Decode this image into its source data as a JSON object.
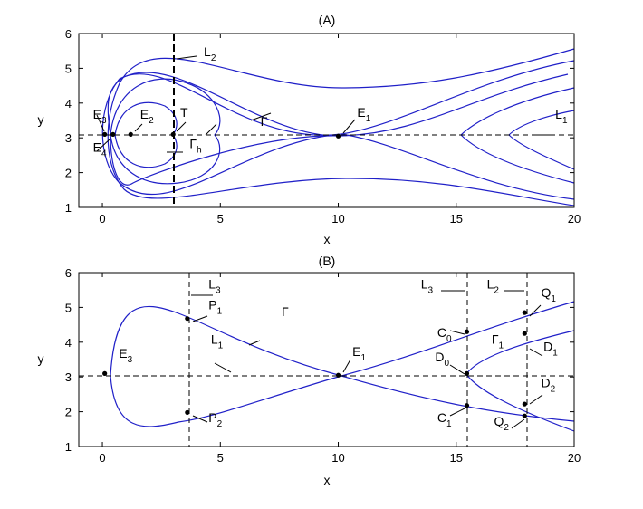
{
  "figure": {
    "panels": [
      {
        "title": "(A)",
        "xlabel": "x",
        "ylabel": "y",
        "xlim": [
          -1,
          20
        ],
        "ylim": [
          1,
          6
        ],
        "xticks": [
          0,
          5,
          10,
          15,
          20
        ],
        "yticks": [
          1,
          2,
          3,
          4,
          5,
          6
        ],
        "hline_y": 3.08,
        "vlines": [
          {
            "x": 3.0,
            "style": "bold"
          }
        ],
        "points": [
          {
            "x": 0.1,
            "y": 3.1
          },
          {
            "x": 0.45,
            "y": 3.1
          },
          {
            "x": 1.2,
            "y": 3.1
          },
          {
            "x": 3.0,
            "y": 3.1
          },
          {
            "x": 10.0,
            "y": 3.05
          }
        ],
        "labels": [
          {
            "main": "E",
            "sub": "3",
            "x": -0.4,
            "y": 3.55
          },
          {
            "main": "E",
            "sub": "4",
            "x": -0.4,
            "y": 2.6
          },
          {
            "main": "E",
            "sub": "2",
            "x": 1.6,
            "y": 3.55
          },
          {
            "main": "T",
            "sub": "",
            "x": 3.3,
            "y": 3.6
          },
          {
            "main": "Γ",
            "sub": "h",
            "x": 3.7,
            "y": 2.7
          },
          {
            "main": "Γ",
            "sub": "",
            "x": 6.7,
            "y": 3.35
          },
          {
            "main": "E",
            "sub": "1",
            "x": 10.8,
            "y": 3.6
          },
          {
            "main": "L",
            "sub": "2",
            "x": 4.3,
            "y": 5.35
          },
          {
            "main": "L",
            "sub": "1",
            "x": 19.2,
            "y": 3.55
          }
        ]
      },
      {
        "title": "(B)",
        "xlabel": "x",
        "ylabel": "y",
        "xlim": [
          -1,
          20
        ],
        "ylim": [
          1,
          6
        ],
        "xticks": [
          0,
          5,
          10,
          15,
          20
        ],
        "yticks": [
          1,
          2,
          3,
          4,
          5,
          6
        ],
        "hline_y": 3.08,
        "vlines": [
          {
            "x": 3.6,
            "style": "thin"
          },
          {
            "x": 15.45,
            "style": "thin"
          },
          {
            "x": 17.9,
            "style": "thin"
          }
        ],
        "points": [
          {
            "x": 0.1,
            "y": 3.1
          },
          {
            "x": 3.6,
            "y": 4.68
          },
          {
            "x": 3.6,
            "y": 1.98
          },
          {
            "x": 10.0,
            "y": 3.05
          },
          {
            "x": 15.45,
            "y": 4.3
          },
          {
            "x": 15.45,
            "y": 3.1
          },
          {
            "x": 15.45,
            "y": 2.18
          },
          {
            "x": 17.9,
            "y": 4.85
          },
          {
            "x": 17.9,
            "y": 4.25
          },
          {
            "x": 17.9,
            "y": 2.22
          },
          {
            "x": 17.9,
            "y": 1.88
          }
        ],
        "labels": [
          {
            "main": "E",
            "sub": "3",
            "x": 0.7,
            "y": 3.55
          },
          {
            "main": "L",
            "sub": "3",
            "x": 4.5,
            "y": 5.55
          },
          {
            "main": "P",
            "sub": "1",
            "x": 4.5,
            "y": 4.95
          },
          {
            "main": "L",
            "sub": "1",
            "x": 4.6,
            "y": 3.95
          },
          {
            "main": "Γ",
            "sub": "",
            "x": 7.6,
            "y": 4.75
          },
          {
            "main": "P",
            "sub": "2",
            "x": 4.5,
            "y": 1.7
          },
          {
            "main": "E",
            "sub": "1",
            "x": 10.6,
            "y": 3.6
          },
          {
            "main": "L",
            "sub": "3",
            "x": 13.5,
            "y": 5.55
          },
          {
            "main": "C",
            "sub": "0",
            "x": 14.2,
            "y": 4.15
          },
          {
            "main": "D",
            "sub": "0",
            "x": 14.1,
            "y": 3.45
          },
          {
            "main": "C",
            "sub": "1",
            "x": 14.2,
            "y": 1.7
          },
          {
            "main": "L",
            "sub": "2",
            "x": 16.3,
            "y": 5.55
          },
          {
            "main": "Q",
            "sub": "1",
            "x": 18.6,
            "y": 5.3
          },
          {
            "main": "Γ",
            "sub": "1",
            "x": 16.5,
            "y": 3.95
          },
          {
            "main": "D",
            "sub": "1",
            "x": 18.7,
            "y": 3.75
          },
          {
            "main": "D",
            "sub": "2",
            "x": 18.6,
            "y": 2.7
          },
          {
            "main": "Q",
            "sub": "2",
            "x": 16.6,
            "y": 1.6
          }
        ]
      }
    ]
  }
}
